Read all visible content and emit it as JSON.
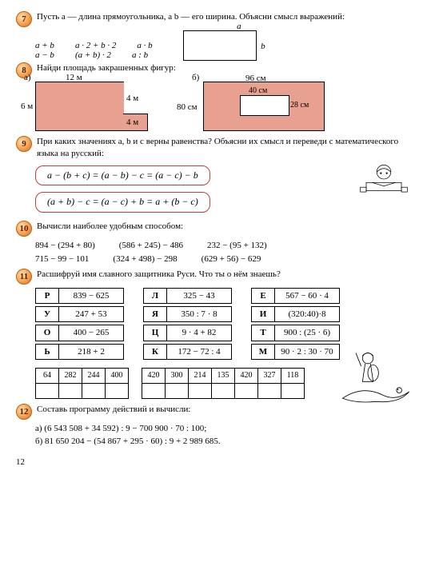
{
  "page_number": "12",
  "task7": {
    "text": "Пусть a — длина прямоугольника, а b — его ширина. Объясни смысл выражений:",
    "expr": [
      "a + b",
      "a · 2 + b · 2",
      "a · b",
      "a − b",
      "(a + b) · 2",
      "a : b"
    ],
    "rect_labels": {
      "a": "a",
      "b": "b"
    }
  },
  "task8": {
    "text": "Найди площадь закрашенных фигур:",
    "a": {
      "top": "12 м",
      "left": "6 м",
      "r1": "4 м",
      "r2": "4 м",
      "label": "а)"
    },
    "b": {
      "top": "96 см",
      "left": "80 см",
      "hole_top": "40 см",
      "hole_right": "28 см",
      "label": "б)"
    }
  },
  "task9": {
    "text": "При каких значениях a, b и c верны равенства? Объясни их смысл и переведи с математического языка на русский:",
    "eq1": "a − (b + c) = (a − b) − c = (a − c) − b",
    "eq2": "(a + b) − c = (a − c) + b = a + (b − c)"
  },
  "task10": {
    "text": "Вычисли наиболее удобным способом:",
    "row1": [
      "894 − (294 + 80)",
      "(586 + 245) − 486",
      "232 − (95 + 132)"
    ],
    "row2": [
      "715 − 99 − 101",
      "(324 + 498) − 298",
      "(629 + 56) − 629"
    ]
  },
  "task11": {
    "text": "Расшифруй имя славного защитника Руси. Что ты о нём знаешь?",
    "cells": [
      [
        [
          "Р",
          "839 − 625"
        ],
        [
          "Л",
          "325 − 43"
        ],
        [
          "Е",
          "567 − 60 · 4"
        ]
      ],
      [
        [
          "У",
          "247 + 53"
        ],
        [
          "Я",
          "350 : 7 · 8"
        ],
        [
          "И",
          "(320:40)·8"
        ]
      ],
      [
        [
          "О",
          "400 − 265"
        ],
        [
          "Ц",
          "9 · 4 + 82"
        ],
        [
          "Т",
          "900 : (25 · 6)"
        ]
      ],
      [
        [
          "Ь",
          "218 + 2"
        ],
        [
          "К",
          "172 − 72 : 4"
        ],
        [
          "М",
          "90 · 2 : 30 · 70"
        ]
      ]
    ],
    "numtab1": [
      "64",
      "282",
      "244",
      "400"
    ],
    "numtab2": [
      "420",
      "300",
      "214",
      "135",
      "420",
      "327",
      "118"
    ]
  },
  "task12": {
    "text": "Составь программу действий и вычисли:",
    "a": "а) (6 543 508 + 34 592) : 9 − 700 900 · 70 : 100;",
    "b": "б) 81 650 204 − (54 867 + 295 · 60) : 9 + 2 989 685."
  },
  "nums": {
    "7": "7",
    "8": "8",
    "9": "9",
    "10": "10",
    "11": "11",
    "12": "12"
  }
}
